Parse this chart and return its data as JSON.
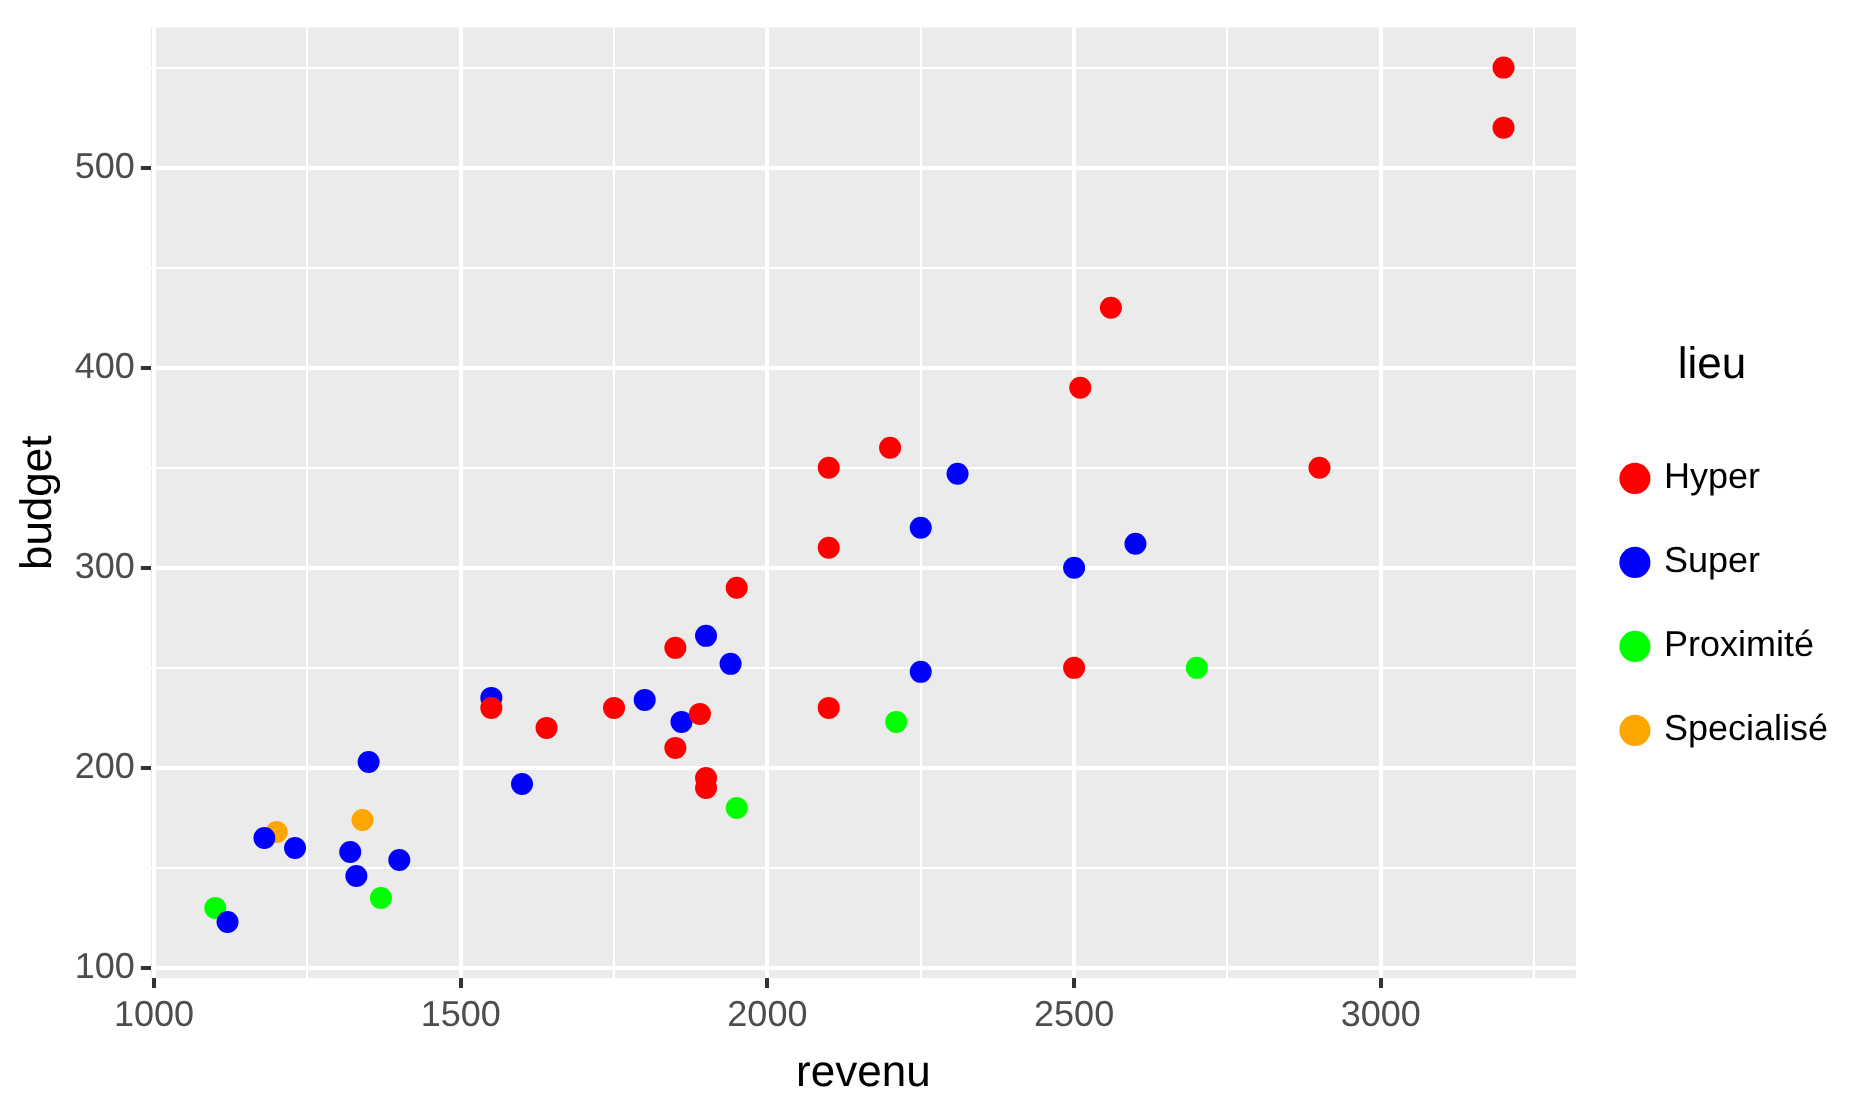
{
  "chart_data": {
    "type": "scatter",
    "xlabel": "revenu",
    "ylabel": "budget",
    "legend_title": "lieu",
    "legend": "right",
    "marker": "circle",
    "grid": true,
    "xlim": [
      995,
      3318
    ],
    "ylim": [
      95,
      570
    ],
    "xticks": [
      1000,
      {
        "value": 1250,
        "label": null
      },
      1500,
      {
        "value": 1750,
        "label": null
      },
      2000,
      {
        "value": 2250,
        "label": null
      },
      2500,
      {
        "value": 2750,
        "label": null
      },
      3000,
      {
        "value": 3250,
        "label": null
      }
    ],
    "yticks": [
      100,
      {
        "value": 150,
        "label": null
      },
      200,
      {
        "value": 250,
        "label": null
      },
      300,
      {
        "value": 350,
        "label": null
      },
      400,
      {
        "value": 450,
        "label": null
      },
      500,
      {
        "value": 550,
        "label": null
      }
    ],
    "series": [
      {
        "name": "Hyper",
        "color": "#ff0000",
        "x": [
          3200,
          3200,
          2560,
          2510,
          2900,
          2100,
          2200,
          2100,
          1950,
          1850,
          2500,
          1550,
          1640,
          1750,
          1890,
          1850,
          1900,
          1900,
          2100
        ],
        "values": [
          550,
          520,
          430,
          390,
          350,
          350,
          360,
          310,
          290,
          260,
          250,
          230,
          220,
          230,
          227,
          210,
          195,
          190,
          230
        ]
      },
      {
        "name": "Super",
        "color": "#0000ff",
        "x": [
          2310,
          2250,
          2600,
          2500,
          1900,
          1940,
          2250,
          1550,
          1800,
          1860,
          1600,
          1350,
          1180,
          1230,
          1320,
          1400,
          1330,
          1120
        ],
        "values": [
          347,
          320,
          312,
          300,
          266,
          252,
          248,
          235,
          234,
          223,
          192,
          203,
          165,
          160,
          158,
          154,
          146,
          123
        ]
      },
      {
        "name": "Proximité",
        "color": "#00ff00",
        "x": [
          2700,
          2210,
          1950,
          1370,
          1100
        ],
        "values": [
          250,
          223,
          180,
          135,
          130
        ]
      },
      {
        "name": "Specialisé",
        "color": "#ffa500",
        "x": [
          1200,
          1340
        ],
        "values": [
          168,
          174
        ]
      }
    ]
  }
}
